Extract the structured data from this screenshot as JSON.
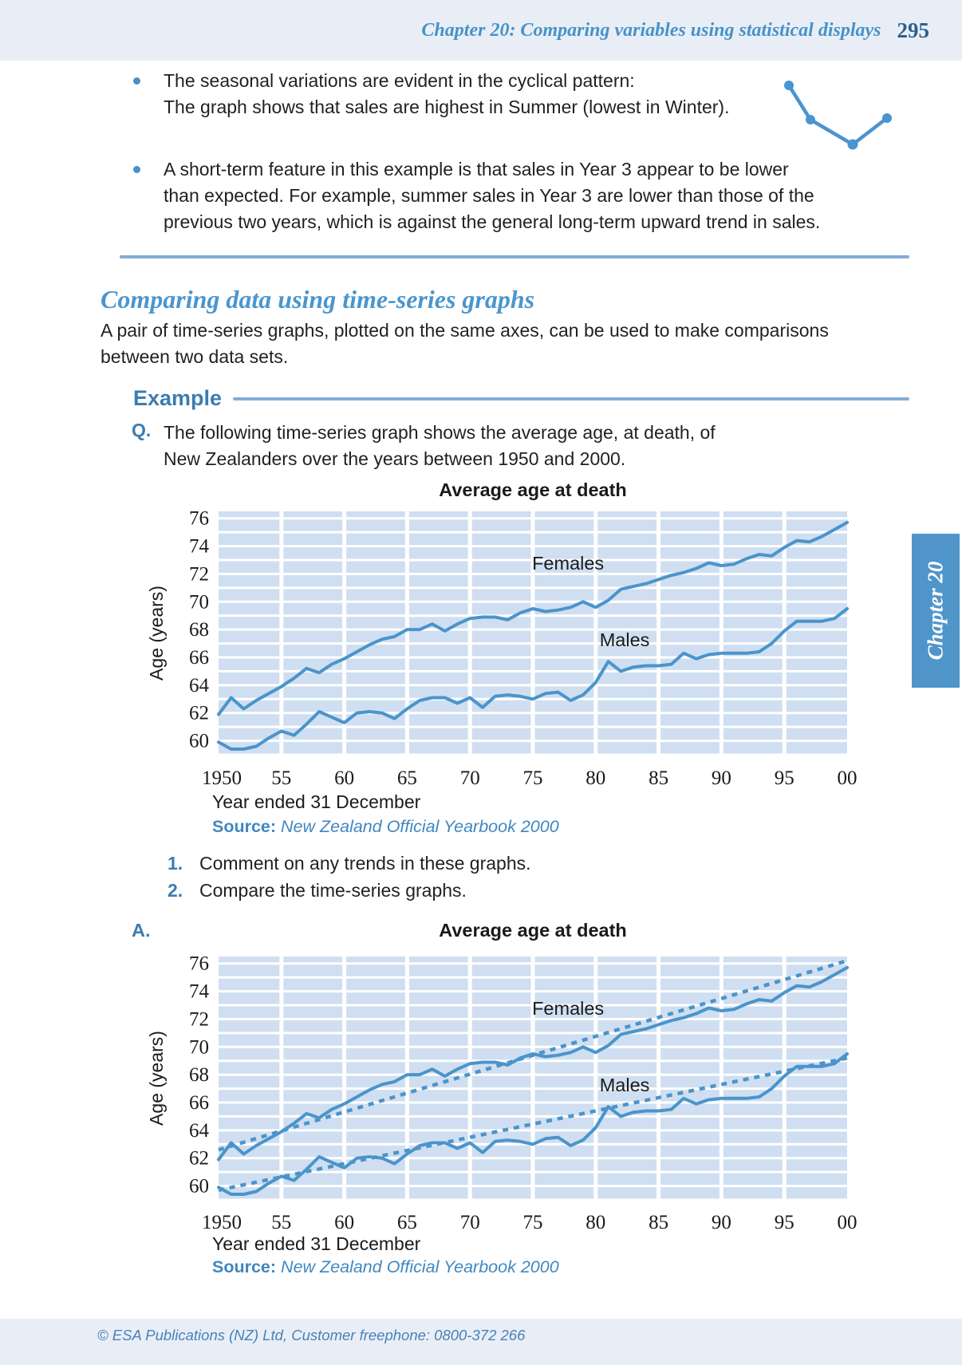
{
  "header": {
    "title": "Chapter 20: Comparing variables using statistical displays",
    "page_number": "295"
  },
  "chapter_tab": "Chapter 20",
  "bullets": [
    {
      "lines": [
        "The seasonal variations are evident in the cyclical pattern:",
        "The graph shows that sales are highest in Summer (lowest in Winter)."
      ]
    },
    {
      "lines": [
        "A short-term feature in this example is that sales in Year 3 appear to be lower",
        "than expected. For example, summer sales in Year 3 are lower than those of the",
        "previous two years, which is against the general long-term upward trend in sales."
      ]
    }
  ],
  "section": {
    "heading": "Comparing data using time-series graphs",
    "para_lines": [
      "A pair of time-series graphs, plotted on the same axes, can be used to make comparisons",
      "between two data sets."
    ]
  },
  "example_label": "Example",
  "question": {
    "marker": "Q.",
    "lines": [
      "The following time-series graph shows the average age, at death, of",
      "New Zealanders over the years between 1950 and 2000."
    ]
  },
  "items": [
    {
      "num": "1.",
      "text": "Comment on any trends in these graphs."
    },
    {
      "num": "2.",
      "text": "Compare the time-series graphs."
    }
  ],
  "answer_marker": "A.",
  "footer": "© ESA Publications (NZ) Ltd, Customer freephone: 0800-372 266",
  "colors": {
    "band": "#e9eef6",
    "header_blue": "#4792c8",
    "page_number_blue": "#2d5f8e",
    "heading_blue": "#4a96ce",
    "marker_blue": "#3c7cb0",
    "source_blue": "#4087c0",
    "chart_line": "#4b94cb",
    "chart_band": "#cfdff1",
    "tab_bg": "#4f95ca",
    "divider": "#84acd6",
    "footer_blue": "#4782b8"
  },
  "chart_data": [
    {
      "type": "line",
      "title": "Average age at death",
      "ylabel": "Age (years)",
      "xlabel": "Year ended 31 December",
      "source_label": "Source:",
      "source": "New Zealand Official Yearbook 2000",
      "x_range": [
        1950,
        2000
      ],
      "ylim": [
        59,
        76.5
      ],
      "y_tick_labels": [
        "60",
        "62",
        "64",
        "66",
        "68",
        "70",
        "72",
        "74",
        "76"
      ],
      "y_ticks": [
        60,
        62,
        64,
        66,
        68,
        70,
        72,
        74,
        76
      ],
      "x_tick_labels": [
        "1950",
        "55",
        "60",
        "65",
        "70",
        "75",
        "80",
        "85",
        "90",
        "95",
        "00"
      ],
      "x_ticks": [
        1950,
        1955,
        1960,
        1965,
        1970,
        1975,
        1980,
        1985,
        1990,
        1995,
        2000
      ],
      "grid": true,
      "legend_position": "on-chart",
      "series": [
        {
          "name": "Females",
          "label_year": 1977.8,
          "label_age": 72.3,
          "values": [
            61.9,
            63.1,
            62.3,
            62.9,
            63.4,
            63.9,
            64.5,
            65.2,
            64.9,
            65.5,
            65.9,
            66.4,
            66.9,
            67.3,
            67.5,
            68.0,
            68.0,
            68.4,
            67.9,
            68.4,
            68.8,
            68.9,
            68.9,
            68.7,
            69.2,
            69.5,
            69.3,
            69.4,
            69.6,
            70.0,
            69.6,
            70.1,
            70.9,
            71.1,
            71.3,
            71.6,
            71.9,
            72.1,
            72.4,
            72.8,
            72.6,
            72.7,
            73.1,
            73.4,
            73.3,
            73.9,
            74.4,
            74.3,
            74.7,
            75.2,
            75.7
          ]
        },
        {
          "name": "Males",
          "label_year": 1982.3,
          "label_age": 66.8,
          "values": [
            59.9,
            59.4,
            59.4,
            59.6,
            60.2,
            60.7,
            60.4,
            61.2,
            62.1,
            61.7,
            61.3,
            62.0,
            62.1,
            62.0,
            61.6,
            62.3,
            62.9,
            63.1,
            63.1,
            62.7,
            63.1,
            62.4,
            63.2,
            63.3,
            63.2,
            63.0,
            63.4,
            63.5,
            62.9,
            63.3,
            64.2,
            65.7,
            65.0,
            65.3,
            65.4,
            65.4,
            65.5,
            66.3,
            65.9,
            66.2,
            66.3,
            66.3,
            66.3,
            66.4,
            67.0,
            67.9,
            68.6,
            68.6,
            68.6,
            68.8,
            69.5
          ]
        }
      ]
    },
    {
      "type": "line",
      "title": "Average age at death",
      "ylabel": "Age (years)",
      "xlabel": "Year ended 31 December",
      "source_label": "Source:",
      "source": "New Zealand Official Yearbook 2000",
      "x_range": [
        1950,
        2000
      ],
      "ylim": [
        59,
        76.5
      ],
      "y_tick_labels": [
        "60",
        "62",
        "64",
        "66",
        "68",
        "70",
        "72",
        "74",
        "76"
      ],
      "y_ticks": [
        60,
        62,
        64,
        66,
        68,
        70,
        72,
        74,
        76
      ],
      "x_tick_labels": [
        "1950",
        "55",
        "60",
        "65",
        "70",
        "75",
        "80",
        "85",
        "90",
        "95",
        "00"
      ],
      "x_ticks": [
        1950,
        1955,
        1960,
        1965,
        1970,
        1975,
        1980,
        1985,
        1990,
        1995,
        2000
      ],
      "grid": true,
      "legend_position": "on-chart",
      "series": [
        {
          "name": "Females",
          "label_year": 1977.8,
          "label_age": 72.3,
          "values": [
            61.9,
            63.1,
            62.3,
            62.9,
            63.4,
            63.9,
            64.5,
            65.2,
            64.9,
            65.5,
            65.9,
            66.4,
            66.9,
            67.3,
            67.5,
            68.0,
            68.0,
            68.4,
            67.9,
            68.4,
            68.8,
            68.9,
            68.9,
            68.7,
            69.2,
            69.5,
            69.3,
            69.4,
            69.6,
            70.0,
            69.6,
            70.1,
            70.9,
            71.1,
            71.3,
            71.6,
            71.9,
            72.1,
            72.4,
            72.8,
            72.6,
            72.7,
            73.1,
            73.4,
            73.3,
            73.9,
            74.4,
            74.3,
            74.7,
            75.2,
            75.7
          ]
        },
        {
          "name": "Males",
          "label_year": 1982.3,
          "label_age": 66.8,
          "values": [
            59.9,
            59.4,
            59.4,
            59.6,
            60.2,
            60.7,
            60.4,
            61.2,
            62.1,
            61.7,
            61.3,
            62.0,
            62.1,
            62.0,
            61.6,
            62.3,
            62.9,
            63.1,
            63.1,
            62.7,
            63.1,
            62.4,
            63.2,
            63.3,
            63.2,
            63.0,
            63.4,
            63.5,
            62.9,
            63.3,
            64.2,
            65.7,
            65.0,
            65.3,
            65.4,
            65.4,
            65.5,
            66.3,
            65.9,
            66.2,
            66.3,
            66.3,
            66.3,
            66.4,
            67.0,
            67.9,
            68.6,
            68.6,
            68.6,
            68.8,
            69.5
          ]
        }
      ],
      "trend_lines": [
        {
          "series": "Females",
          "style": "dashed",
          "start_year": 1950,
          "start_age": 62.6,
          "end_year": 2000,
          "end_age": 76.2
        },
        {
          "series": "Males",
          "style": "dashed",
          "start_year": 1950,
          "start_age": 59.7,
          "end_year": 2000,
          "end_age": 69.2
        }
      ]
    }
  ]
}
